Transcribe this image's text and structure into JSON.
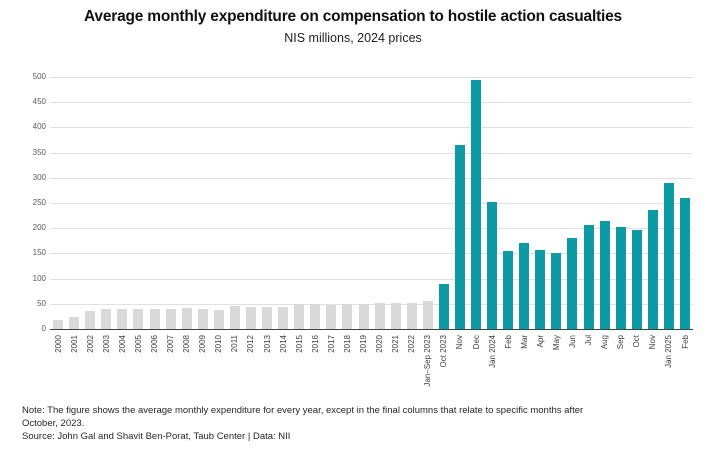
{
  "title": "Average monthly expenditure on compensation to hostile action casualties",
  "subtitle": "NIS millions, 2024 prices",
  "note_line1": "Note: The figure shows the average monthly expenditure for every year, except in the final columns that relate to specific months after",
  "note_line2": "October, 2023.",
  "source": "Source: John Gal and Shavit Ben-Porat, Taub Center  |  Data: NII",
  "colors": {
    "annual_bar": "#d9d9d9",
    "monthly_bar": "#0d9aa2",
    "gridline": "#e0e0e0",
    "axis": "#404040",
    "tick_text": "#595959"
  },
  "chart_data": {
    "type": "bar",
    "title": "Average monthly expenditure on compensation to hostile action casualties",
    "subtitle": "NIS millions, 2024 prices",
    "xlabel": "",
    "ylabel": "",
    "ylim": [
      0,
      500
    ],
    "ytick_step": 50,
    "grid": true,
    "legend": false,
    "annual_bars_count": 24,
    "categories": [
      "2000",
      "2001",
      "2002",
      "2003",
      "2004",
      "2005",
      "2006",
      "2007",
      "2008",
      "2009",
      "2010",
      "2011",
      "2012",
      "2013",
      "2014",
      "2015",
      "2016",
      "2017",
      "2018",
      "2019",
      "2020",
      "2021",
      "2022",
      "Jan–Sep 2023",
      "Oct 2023",
      "Nov",
      "Dec",
      "Jan 2024",
      "Feb",
      "Mar",
      "Apr",
      "May",
      "Jun",
      "Jul",
      "Aug",
      "Sep",
      "Oct",
      "Nov",
      "Jan 2025",
      "Feb"
    ],
    "values": [
      18,
      24,
      36,
      40,
      39,
      39,
      40,
      40,
      41,
      40,
      38,
      46,
      44,
      44,
      43,
      50,
      49,
      48,
      49,
      50,
      52,
      51,
      51,
      55,
      90,
      365,
      495,
      252,
      155,
      171,
      157,
      150,
      181,
      207,
      215,
      203,
      197,
      236,
      290,
      261
    ]
  }
}
